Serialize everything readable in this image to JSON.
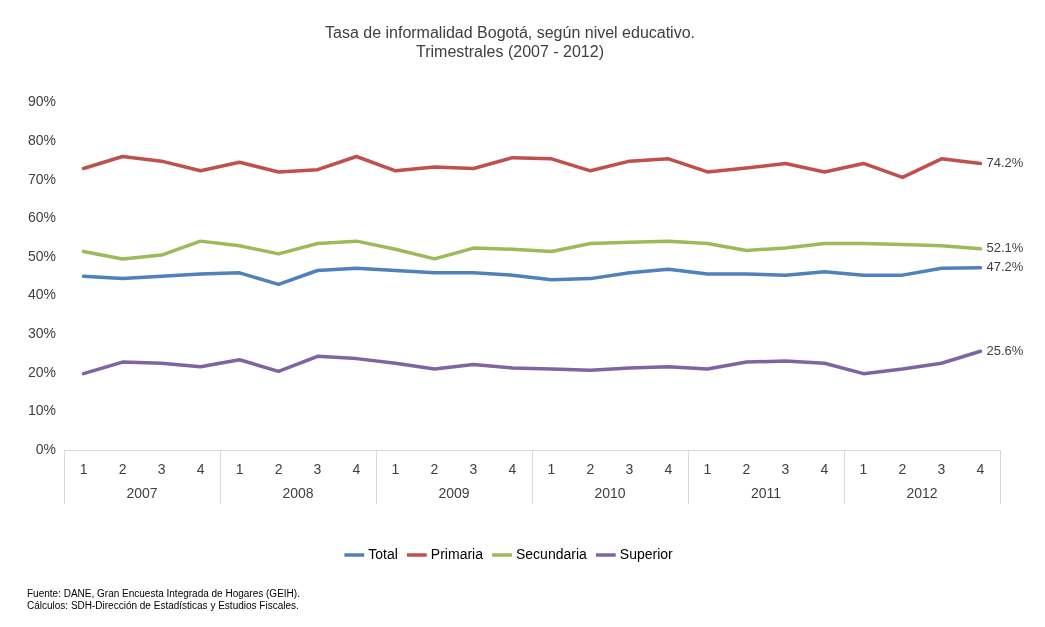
{
  "chart_data": {
    "type": "line",
    "title": "Tasa de informalidad Bogotá, según nivel educativo.",
    "subtitle": "Trimestrales (2007 - 2012)",
    "categories": [
      "1",
      "2",
      "3",
      "4",
      "1",
      "2",
      "3",
      "4",
      "1",
      "2",
      "3",
      "4",
      "1",
      "2",
      "3",
      "4",
      "1",
      "2",
      "3",
      "4",
      "1",
      "2",
      "3",
      "4"
    ],
    "series": [
      {
        "name": "Total",
        "color": "#4f81bd",
        "values": [
          45.0,
          44.4,
          45.0,
          45.6,
          45.9,
          42.9,
          46.5,
          47.1,
          46.5,
          45.9,
          45.9,
          45.3,
          44.1,
          44.4,
          45.9,
          46.8,
          45.6,
          45.6,
          45.3,
          46.2,
          45.3,
          45.3,
          47.1,
          47.2
        ],
        "value_labels": [
          null,
          null,
          null,
          null,
          null,
          null,
          null,
          null,
          null,
          null,
          null,
          null,
          null,
          null,
          null,
          null,
          null,
          null,
          null,
          null,
          null,
          null,
          null,
          "47.2%"
        ]
      },
      {
        "name": "Primaria",
        "color": "#c0504d",
        "values": [
          72.9,
          76.0,
          74.8,
          72.3,
          74.5,
          72.0,
          72.6,
          76.0,
          72.3,
          73.3,
          72.9,
          75.7,
          75.4,
          72.3,
          74.8,
          75.4,
          72.0,
          73.0,
          74.2,
          72.0,
          74.2,
          70.6,
          75.4,
          74.2
        ],
        "value_labels": [
          null,
          null,
          null,
          null,
          null,
          null,
          null,
          null,
          null,
          null,
          null,
          null,
          null,
          null,
          null,
          null,
          null,
          null,
          null,
          null,
          null,
          null,
          null,
          "74.2%"
        ]
      },
      {
        "name": "Secundaria",
        "color": "#9bbb59",
        "values": [
          51.4,
          49.5,
          50.5,
          54.1,
          52.9,
          50.8,
          53.5,
          54.1,
          52.0,
          49.5,
          52.3,
          52.0,
          51.4,
          53.5,
          53.8,
          54.1,
          53.5,
          51.7,
          52.3,
          53.5,
          53.5,
          53.2,
          52.9,
          52.1
        ],
        "value_labels": [
          null,
          null,
          null,
          null,
          null,
          null,
          null,
          null,
          null,
          null,
          null,
          null,
          null,
          null,
          null,
          null,
          null,
          null,
          null,
          null,
          null,
          null,
          null,
          "52.1%"
        ]
      },
      {
        "name": "Superior",
        "color": "#8064a2",
        "values": [
          19.8,
          22.8,
          22.5,
          21.6,
          23.4,
          20.4,
          24.3,
          23.7,
          22.5,
          21.0,
          22.2,
          21.3,
          21.0,
          20.7,
          21.3,
          21.6,
          21.0,
          22.8,
          23.1,
          22.5,
          19.8,
          21.0,
          22.5,
          25.6
        ],
        "value_labels": [
          null,
          null,
          null,
          null,
          null,
          null,
          null,
          null,
          null,
          null,
          null,
          null,
          null,
          null,
          null,
          null,
          null,
          null,
          null,
          null,
          null,
          null,
          null,
          "25.6%"
        ]
      }
    ],
    "ylim": [
      0,
      90
    ],
    "yticks": [
      {
        "value": 0,
        "label": "0%"
      },
      {
        "value": 10,
        "label": "10%"
      },
      {
        "value": 20,
        "label": "20%"
      },
      {
        "value": 30,
        "label": "30%"
      },
      {
        "value": 40,
        "label": "40%"
      },
      {
        "value": 50,
        "label": "50%"
      },
      {
        "value": 60,
        "label": "60%"
      },
      {
        "value": 70,
        "label": "70%"
      },
      {
        "value": 80,
        "label": "80%"
      },
      {
        "value": 90,
        "label": "90%"
      }
    ],
    "grid": false,
    "legend": "bottom",
    "marker": "none",
    "line_style": "solid",
    "annotations": [
      "2007",
      "2008",
      "2009",
      "2010",
      "2011",
      "2012",
      "Fuente: DANE, Gran Encuesta Integrada de Hogares (GEIH).",
      "Cálculos: SDH-Dirección de Estadísticas y Estudios Fiscales."
    ]
  }
}
